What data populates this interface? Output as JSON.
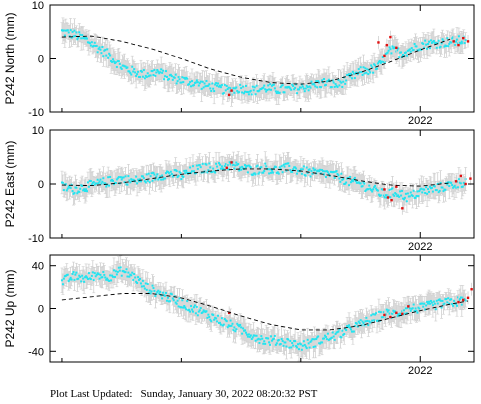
{
  "footer": {
    "label": "Plot Last Updated:",
    "timestamp": "Sunday, January 30, 2022 08:20:32 PST"
  },
  "colors": {
    "points": "#22e4f0",
    "recent_points": "#e01010",
    "error_bars": "#cfcfcf",
    "model": "#000000"
  },
  "chart_data": [
    {
      "type": "scatter",
      "ylabel": "P242 North (mm)",
      "ylim": [
        -10,
        10
      ],
      "yticks": [
        -10,
        0,
        10
      ],
      "xlim": [
        2018.9,
        2022.45
      ],
      "xtick_labels": [
        {
          "x": 2022.0,
          "label": "2022"
        }
      ],
      "model_curve": {
        "x": [
          2019.0,
          2019.25,
          2019.5,
          2019.75,
          2020.0,
          2020.25,
          2020.5,
          2020.75,
          2021.0,
          2021.25,
          2021.5,
          2021.75,
          2022.0,
          2022.25
        ],
        "y": [
          4.0,
          4.2,
          3.2,
          1.8,
          0.0,
          -2.0,
          -3.5,
          -4.5,
          -4.8,
          -4.2,
          -2.6,
          -0.6,
          1.6,
          3.6
        ]
      },
      "observed": {
        "x": [
          2019.0,
          2019.1,
          2019.2,
          2019.3,
          2019.4,
          2019.5,
          2019.6,
          2019.7,
          2019.8,
          2019.9,
          2020.0,
          2020.1,
          2020.2,
          2020.3,
          2020.4,
          2020.5,
          2020.6,
          2020.7,
          2020.8,
          2020.9,
          2021.0,
          2021.1,
          2021.2,
          2021.3,
          2021.4,
          2021.5,
          2021.6,
          2021.65,
          2021.75,
          2021.85,
          2022.0,
          2022.1,
          2022.2,
          2022.3,
          2022.38
        ],
        "y": [
          5.0,
          4.5,
          3.5,
          2.0,
          0.5,
          -1.5,
          -2.5,
          -3.0,
          -2.5,
          -3.5,
          -4.0,
          -4.5,
          -5.0,
          -5.5,
          -6.0,
          -5.5,
          -6.0,
          -5.5,
          -5.8,
          -5.8,
          -5.5,
          -5.0,
          -4.5,
          -5.0,
          -3.8,
          -2.5,
          -2.0,
          -1.5,
          1.5,
          1.0,
          2.5,
          2.8,
          3.0,
          3.2,
          3.5
        ]
      },
      "recent": {
        "x": [
          2020.4,
          2020.42,
          2021.65,
          2021.7,
          2021.72,
          2021.75,
          2021.8,
          2022.28,
          2022.32,
          2022.36,
          2022.4
        ],
        "y": [
          -6.8,
          -6.0,
          3.0,
          0.5,
          2.5,
          4.0,
          2.0,
          3.2,
          2.5,
          3.8,
          3.2
        ]
      }
    },
    {
      "type": "scatter",
      "ylabel": "P242 East (mm)",
      "ylim": [
        -10,
        10
      ],
      "yticks": [
        -10,
        0,
        10
      ],
      "xlim": [
        2018.9,
        2022.45
      ],
      "xtick_labels": [
        {
          "x": 2022.0,
          "label": "2022"
        }
      ],
      "model_curve": {
        "x": [
          2019.0,
          2019.25,
          2019.5,
          2019.75,
          2020.0,
          2020.25,
          2020.5,
          2020.75,
          2021.0,
          2021.25,
          2021.5,
          2021.75,
          2022.0,
          2022.25
        ],
        "y": [
          -0.2,
          -0.3,
          0.2,
          1.0,
          1.8,
          2.4,
          2.8,
          2.8,
          2.4,
          1.6,
          0.6,
          -0.2,
          -0.4,
          0.2
        ]
      },
      "observed": {
        "x": [
          2019.0,
          2019.1,
          2019.2,
          2019.3,
          2019.4,
          2019.5,
          2019.6,
          2019.7,
          2019.8,
          2019.9,
          2020.0,
          2020.1,
          2020.2,
          2020.3,
          2020.4,
          2020.5,
          2020.6,
          2020.7,
          2020.8,
          2020.9,
          2021.0,
          2021.1,
          2021.2,
          2021.3,
          2021.4,
          2021.5,
          2021.6,
          2021.7,
          2021.8,
          2021.9,
          2022.0,
          2022.1,
          2022.2,
          2022.3,
          2022.38
        ],
        "y": [
          -0.5,
          -1.0,
          -0.5,
          0.0,
          0.5,
          1.0,
          0.5,
          1.0,
          1.5,
          2.0,
          1.5,
          2.5,
          3.0,
          3.0,
          3.5,
          3.0,
          2.5,
          3.0,
          2.5,
          3.0,
          2.5,
          2.0,
          2.0,
          1.5,
          0.5,
          0.0,
          -1.0,
          -2.0,
          -1.5,
          -2.5,
          -1.5,
          -1.0,
          -0.5,
          0.0,
          0.5
        ]
      },
      "recent": {
        "x": [
          2020.38,
          2020.42,
          2021.7,
          2021.73,
          2021.76,
          2021.8,
          2021.85,
          2022.3,
          2022.34,
          2022.38,
          2022.42
        ],
        "y": [
          3.0,
          4.0,
          -1.0,
          -2.5,
          -3.0,
          -0.5,
          -4.5,
          0.5,
          1.5,
          0.0,
          1.0
        ]
      }
    },
    {
      "type": "scatter",
      "ylabel": "P242 Up (mm)",
      "ylim": [
        -50,
        50
      ],
      "yticks": [
        -40,
        0,
        40
      ],
      "xlim": [
        2018.9,
        2022.45
      ],
      "xtick_labels": [
        {
          "x": 2022.0,
          "label": "2022"
        }
      ],
      "model_curve": {
        "x": [
          2019.0,
          2019.25,
          2019.5,
          2019.75,
          2020.0,
          2020.25,
          2020.5,
          2020.75,
          2021.0,
          2021.25,
          2021.5,
          2021.75,
          2022.0,
          2022.25,
          2022.4
        ],
        "y": [
          8.0,
          11.0,
          14.0,
          14.0,
          10.0,
          2.0,
          -7.0,
          -15.0,
          -20.0,
          -20.0,
          -16.0,
          -9.0,
          -2.0,
          4.0,
          7.0
        ]
      },
      "observed": {
        "x": [
          2019.0,
          2019.1,
          2019.2,
          2019.3,
          2019.4,
          2019.5,
          2019.6,
          2019.7,
          2019.8,
          2019.9,
          2020.0,
          2020.1,
          2020.2,
          2020.3,
          2020.4,
          2020.5,
          2020.6,
          2020.7,
          2020.8,
          2020.9,
          2021.0,
          2021.1,
          2021.2,
          2021.3,
          2021.4,
          2021.5,
          2021.6,
          2021.7,
          2021.8,
          2021.9,
          2022.0,
          2022.1,
          2022.2,
          2022.3,
          2022.38
        ],
        "y": [
          25.0,
          30.0,
          28.0,
          32.0,
          30.0,
          35.0,
          30.0,
          20.0,
          15.0,
          10.0,
          5.0,
          0.0,
          -5.0,
          -10.0,
          -15.0,
          -20.0,
          -25.0,
          -30.0,
          -30.0,
          -32.0,
          -35.0,
          -32.0,
          -28.0,
          -25.0,
          -20.0,
          -15.0,
          -10.0,
          -5.0,
          -5.0,
          0.0,
          0.0,
          3.0,
          5.0,
          6.0,
          8.0
        ]
      },
      "recent": {
        "x": [
          2020.4,
          2021.7,
          2021.75,
          2021.8,
          2021.85,
          2021.9,
          2022.32,
          2022.36,
          2022.4,
          2022.43
        ],
        "y": [
          -4.0,
          -6.0,
          -8.0,
          -4.0,
          -5.0,
          2.0,
          6.0,
          8.0,
          10.0,
          18.0
        ]
      }
    }
  ]
}
